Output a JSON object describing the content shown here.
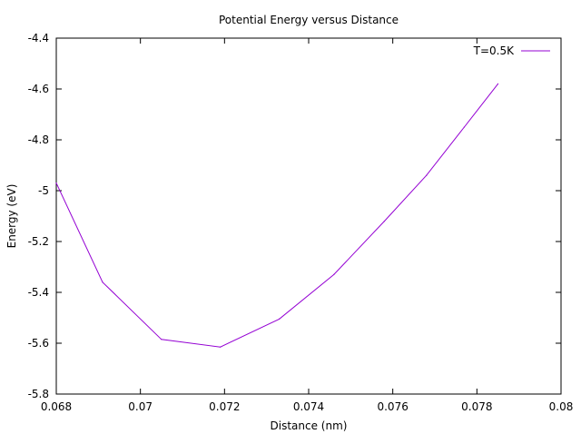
{
  "chart_data": {
    "type": "line",
    "title": "Potential Energy versus Distance",
    "xlabel": "Distance (nm)",
    "ylabel": "Energy (eV)",
    "xlim": [
      0.068,
      0.08
    ],
    "ylim": [
      -5.8,
      -4.4
    ],
    "xticks": [
      0.068,
      0.07,
      0.072,
      0.074,
      0.076,
      0.078,
      0.08
    ],
    "xtick_labels": [
      "0.068",
      "0.07",
      "0.072",
      "0.074",
      "0.076",
      "0.078",
      "0.08"
    ],
    "yticks": [
      -5.8,
      -5.6,
      -5.4,
      -5.2,
      -5.0,
      -4.8,
      -4.6,
      -4.4
    ],
    "ytick_labels": [
      "-5.8",
      "-5.6",
      "-5.4",
      "-5.2",
      "-5",
      "-4.8",
      "-4.6",
      "-4.4"
    ],
    "grid": false,
    "legend_position": "top-right",
    "series": [
      {
        "name": "T=0.5K",
        "color": "#9400d3",
        "x": [
          0.068,
          0.0691,
          0.0705,
          0.0719,
          0.0733,
          0.0746,
          0.0758,
          0.0768,
          0.0777,
          0.0785
        ],
        "y": [
          -4.97,
          -5.36,
          -5.585,
          -5.615,
          -5.505,
          -5.33,
          -5.12,
          -4.94,
          -4.75,
          -4.58
        ]
      }
    ]
  }
}
